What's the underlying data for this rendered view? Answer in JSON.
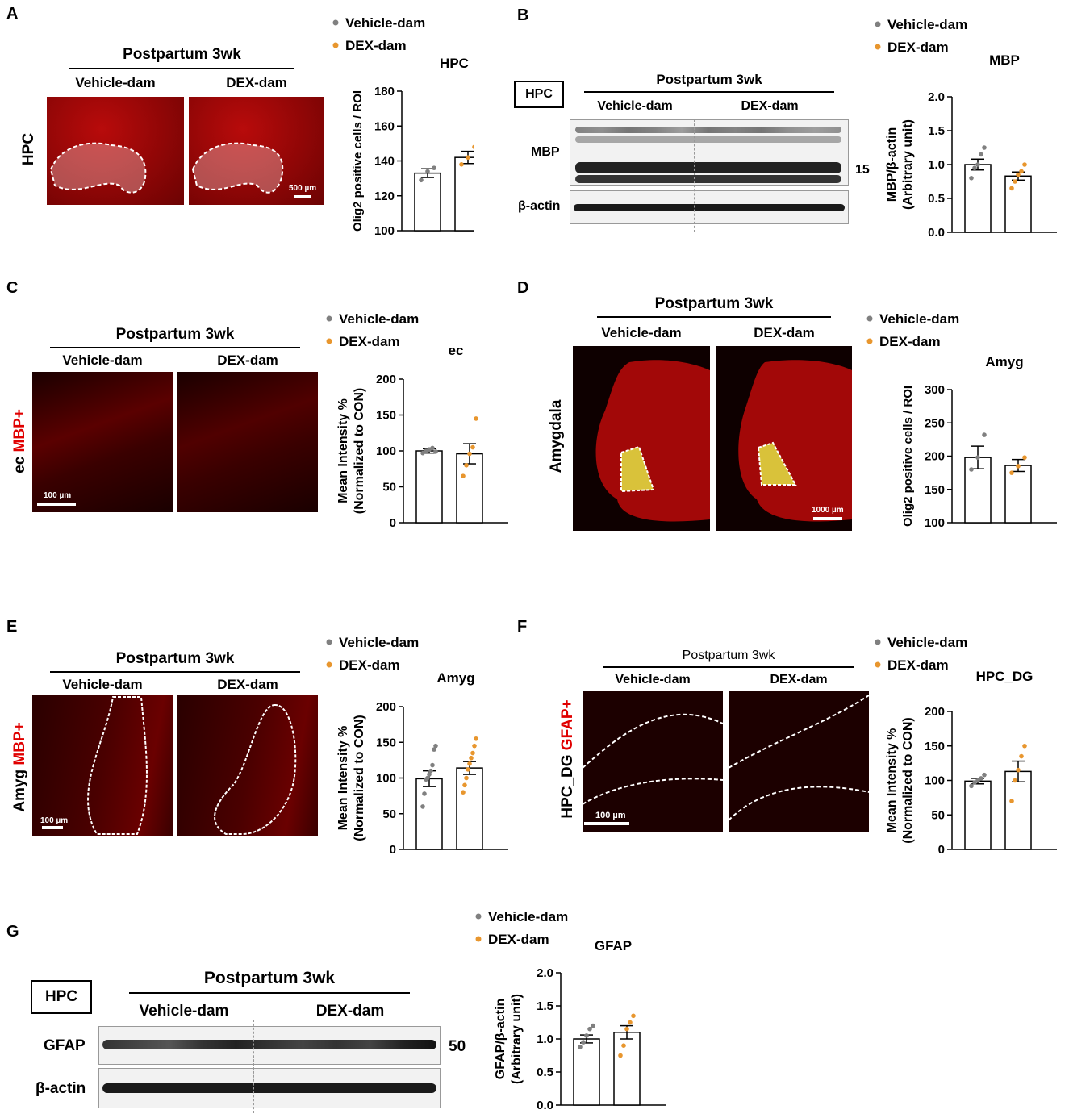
{
  "panels": {
    "A": {
      "letter": "A",
      "header": "Postpartum 3wk",
      "groups": [
        "Vehicle-dam",
        "DEX-dam"
      ],
      "side_label": "HPC",
      "scale": "500 µm"
    },
    "B": {
      "letter": "B",
      "region_box": "HPC",
      "header": "Postpartum 3wk",
      "groups": [
        "Vehicle-dam",
        "DEX-dam"
      ],
      "row_labels": [
        "MBP",
        "β-actin"
      ],
      "kda": "15"
    },
    "C": {
      "letter": "C",
      "header": "Postpartum 3wk",
      "groups": [
        "Vehicle-dam",
        "DEX-dam"
      ],
      "side_prefix": "ec ",
      "side_marker": "MBP+",
      "scale": "100 µm"
    },
    "D": {
      "letter": "D",
      "header": "Postpartum 3wk",
      "groups": [
        "Vehicle-dam",
        "DEX-dam"
      ],
      "side_label": "Amygdala",
      "scale": "1000 µm"
    },
    "E": {
      "letter": "E",
      "header": "Postpartum 3wk",
      "groups": [
        "Vehicle-dam",
        "DEX-dam"
      ],
      "side_prefix": "Amyg ",
      "side_marker": "MBP+",
      "scale": "100 µm"
    },
    "F": {
      "letter": "F",
      "header": "Postpartum 3wk",
      "groups": [
        "Vehicle-dam",
        "DEX-dam"
      ],
      "side_prefix": "HPC_DG ",
      "side_marker": "GFAP+",
      "scale": "100 µm"
    },
    "G": {
      "letter": "G",
      "region_box": "HPC",
      "header": "Postpartum 3wk",
      "groups": [
        "Vehicle-dam",
        "DEX-dam"
      ],
      "row_labels": [
        "GFAP",
        "β-actin"
      ],
      "kda": "50"
    }
  },
  "colors": {
    "vehicle": "#808080",
    "dex": "#e8962e",
    "signal": "#c00000"
  },
  "legend": {
    "vehicle": "Vehicle-dam",
    "dex": "DEX-dam"
  },
  "chart_data": [
    {
      "id": "A",
      "type": "bar",
      "title": "HPC",
      "ylabel": "Olig2 positive cells / ROI",
      "ylim": [
        100,
        180
      ],
      "yticks": [
        100,
        120,
        140,
        160,
        180
      ],
      "categories": [
        "Vehicle-dam",
        "DEX-dam"
      ],
      "values": [
        133,
        142
      ],
      "errors": [
        2.5,
        3.5
      ],
      "points": [
        [
          129,
          134,
          136
        ],
        [
          138,
          142,
          148
        ]
      ]
    },
    {
      "id": "B",
      "type": "bar",
      "title": "MBP",
      "ylabel": [
        "MBP/β-actin",
        "(Arbitrary unit)"
      ],
      "ylim": [
        0,
        2
      ],
      "yticks": [
        "0.0",
        "0.5",
        "1.0",
        "1.5",
        "2.0"
      ],
      "categories": [
        "Vehicle-dam",
        "DEX-dam"
      ],
      "values": [
        1.0,
        0.83
      ],
      "errors": [
        0.08,
        0.06
      ],
      "points": [
        [
          0.8,
          0.95,
          1.0,
          1.15,
          1.25
        ],
        [
          0.65,
          0.75,
          0.85,
          0.9,
          1.0
        ]
      ]
    },
    {
      "id": "C",
      "type": "bar",
      "title": "ec",
      "ylabel": [
        "Mean Intensity %",
        "(Normalized to CON)"
      ],
      "ylim": [
        0,
        200
      ],
      "yticks": [
        0,
        50,
        100,
        150,
        200
      ],
      "categories": [
        "Vehicle-dam",
        "DEX-dam"
      ],
      "values": [
        100,
        96
      ],
      "errors": [
        3,
        14
      ],
      "points": [
        [
          97,
          100,
          102,
          104,
          99
        ],
        [
          65,
          80,
          96,
          105,
          145
        ]
      ]
    },
    {
      "id": "D",
      "type": "bar",
      "title": "Amyg",
      "ylabel": "Olig2 positive cells / ROI",
      "ylim": [
        100,
        300
      ],
      "yticks": [
        100,
        150,
        200,
        250,
        300
      ],
      "categories": [
        "Vehicle-dam",
        "DEX-dam"
      ],
      "values": [
        198,
        186
      ],
      "errors": [
        17,
        9
      ],
      "points": [
        [
          180,
          198,
          232
        ],
        [
          175,
          185,
          198
        ]
      ]
    },
    {
      "id": "E",
      "type": "bar",
      "title": "Amyg",
      "ylabel": [
        "Mean Intensity %",
        "(Normalized to CON)"
      ],
      "ylim": [
        0,
        200
      ],
      "yticks": [
        0,
        50,
        100,
        150,
        200
      ],
      "categories": [
        "Vehicle-dam",
        "DEX-dam"
      ],
      "values": [
        99,
        114
      ],
      "errors": [
        11,
        9
      ],
      "points": [
        [
          60,
          78,
          98,
          100,
          105,
          110,
          118,
          140,
          145
        ],
        [
          80,
          90,
          100,
          112,
          120,
          128,
          135,
          145,
          155
        ]
      ]
    },
    {
      "id": "F",
      "type": "bar",
      "title": "HPC_DG",
      "ylabel": [
        "Mean Intensity %",
        "(Normalized to CON)"
      ],
      "ylim": [
        0,
        200
      ],
      "yticks": [
        0,
        50,
        100,
        150,
        200
      ],
      "categories": [
        "Vehicle-dam",
        "DEX-dam"
      ],
      "values": [
        99,
        113
      ],
      "errors": [
        4,
        15
      ],
      "points": [
        [
          92,
          97,
          100,
          103,
          108
        ],
        [
          70,
          100,
          115,
          135,
          150
        ]
      ]
    },
    {
      "id": "G",
      "type": "bar",
      "title": "GFAP",
      "ylabel": [
        "GFAP/β-actin",
        "(Arbitrary unit)"
      ],
      "ylim": [
        0,
        2
      ],
      "yticks": [
        "0.0",
        "0.5",
        "1.0",
        "1.5",
        "2.0"
      ],
      "categories": [
        "Vehicle-dam",
        "DEX-dam"
      ],
      "values": [
        1.0,
        1.1
      ],
      "errors": [
        0.06,
        0.1
      ],
      "points": [
        [
          0.88,
          0.95,
          1.05,
          1.15,
          1.2
        ],
        [
          0.75,
          0.9,
          1.15,
          1.25,
          1.35
        ]
      ]
    }
  ]
}
